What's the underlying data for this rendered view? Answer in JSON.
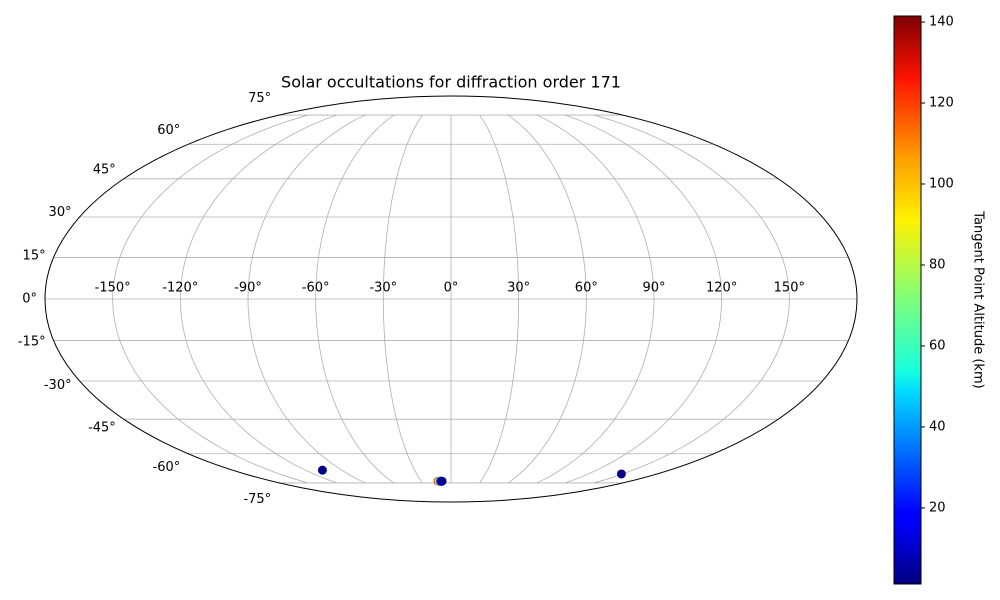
{
  "chart_data": {
    "type": "scatter",
    "projection": "mollweide",
    "title": "Solar occultations for diffraction order 171",
    "x": [
      -106,
      149,
      -13,
      -12.5,
      -12,
      -11.5,
      -11,
      -10.5,
      -10,
      -9
    ],
    "y": [
      -68,
      -70,
      -74,
      -74,
      -74,
      -74,
      -74,
      -74,
      -74,
      -74
    ],
    "values": [
      2,
      2,
      130,
      110,
      95,
      75,
      55,
      35,
      15,
      3
    ],
    "colormap": "jet",
    "clim": [
      1.2,
      141.5
    ],
    "colorbar_label": "Tangent Point Altitude (km)",
    "colorbar_ticks": [
      20,
      40,
      60,
      80,
      100,
      120,
      140
    ],
    "xticks": [
      {
        "value": -150,
        "label": "-150°"
      },
      {
        "value": -120,
        "label": "-120°"
      },
      {
        "value": -90,
        "label": "-90°"
      },
      {
        "value": -60,
        "label": "-60°"
      },
      {
        "value": -30,
        "label": "-30°"
      },
      {
        "value": 0,
        "label": "0°"
      },
      {
        "value": 30,
        "label": "30°"
      },
      {
        "value": 60,
        "label": "60°"
      },
      {
        "value": 90,
        "label": "90°"
      },
      {
        "value": 120,
        "label": "120°"
      },
      {
        "value": 150,
        "label": "150°"
      }
    ],
    "yticks": [
      {
        "value": -75,
        "label": "-75°"
      },
      {
        "value": -60,
        "label": "-60°"
      },
      {
        "value": -45,
        "label": "-45°"
      },
      {
        "value": -30,
        "label": "-30°"
      },
      {
        "value": -15,
        "label": "-15°"
      },
      {
        "value": 0,
        "label": "0°"
      },
      {
        "value": 15,
        "label": "15°"
      },
      {
        "value": 30,
        "label": "30°"
      },
      {
        "value": 45,
        "label": "45°"
      },
      {
        "value": 60,
        "label": "60°"
      },
      {
        "value": 75,
        "label": "75°"
      }
    ],
    "grid": true
  }
}
